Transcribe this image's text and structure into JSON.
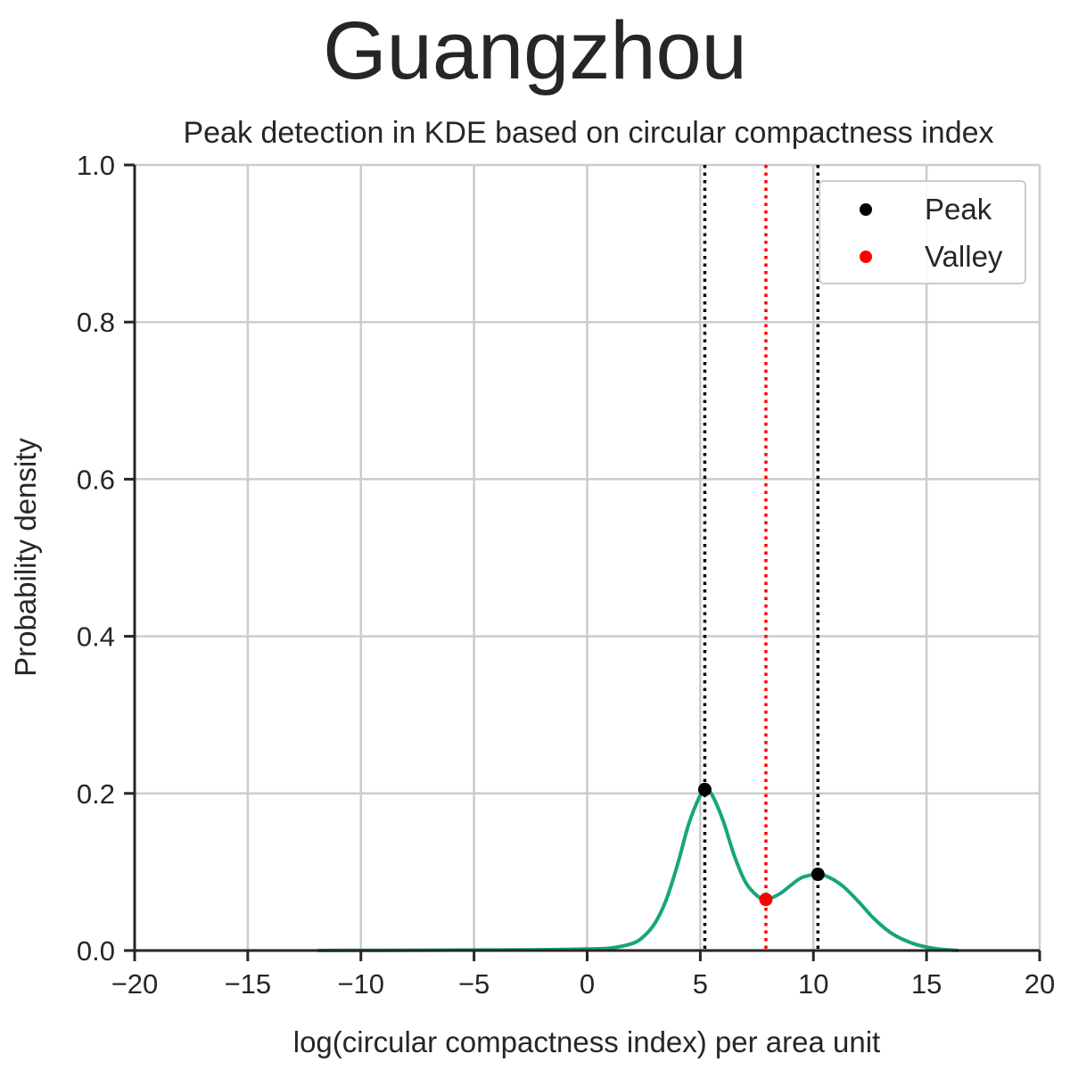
{
  "chart_data": {
    "type": "line",
    "suptitle": "Guangzhou",
    "title": "Peak detection in KDE based on circular compactness index",
    "xlabel": "log(circular compactness index) per area unit",
    "ylabel": "Probability density",
    "xlim": [
      -20,
      20
    ],
    "ylim": [
      0,
      1.0
    ],
    "xticks": [
      -20,
      -15,
      -10,
      -5,
      0,
      5,
      10,
      15,
      20
    ],
    "xtick_labels": [
      "−20",
      "−15",
      "−10",
      "−5",
      "0",
      "5",
      "10",
      "15",
      "20"
    ],
    "yticks": [
      0,
      0.2,
      0.4,
      0.6,
      0.8,
      1.0
    ],
    "ytick_labels": [
      "0.0",
      "0.2",
      "0.4",
      "0.6",
      "0.8",
      "1.0"
    ],
    "grid": true,
    "legend_position": "top-right",
    "series": [
      {
        "kind": "kde",
        "color": "#17a57b",
        "points": [
          [
            -11.9,
            0.0
          ],
          [
            -8,
            0.0003
          ],
          [
            -4,
            0.0007
          ],
          [
            -2,
            0.001
          ],
          [
            0,
            0.002
          ],
          [
            1,
            0.003
          ],
          [
            2,
            0.009
          ],
          [
            2.5,
            0.018
          ],
          [
            3,
            0.035
          ],
          [
            3.5,
            0.065
          ],
          [
            4,
            0.11
          ],
          [
            4.5,
            0.162
          ],
          [
            5,
            0.198
          ],
          [
            5.2,
            0.205
          ],
          [
            5.5,
            0.199
          ],
          [
            6,
            0.166
          ],
          [
            6.5,
            0.121
          ],
          [
            7,
            0.087
          ],
          [
            7.5,
            0.07
          ],
          [
            7.9,
            0.065
          ],
          [
            8.5,
            0.072
          ],
          [
            9,
            0.083
          ],
          [
            9.5,
            0.093
          ],
          [
            10.2,
            0.097
          ],
          [
            10.7,
            0.093
          ],
          [
            11.3,
            0.082
          ],
          [
            12,
            0.062
          ],
          [
            12.7,
            0.04
          ],
          [
            13.5,
            0.021
          ],
          [
            14.5,
            0.008
          ],
          [
            15.5,
            0.002
          ],
          [
            16.4,
            0.0
          ]
        ]
      }
    ],
    "peaks": [
      {
        "x": 5.2,
        "y": 0.205
      },
      {
        "x": 10.2,
        "y": 0.097
      }
    ],
    "valleys": [
      {
        "x": 7.9,
        "y": 0.065
      }
    ],
    "legend": [
      {
        "label": "Peak",
        "color": "#000000"
      },
      {
        "label": "Valley",
        "color": "#ff0000"
      }
    ]
  }
}
